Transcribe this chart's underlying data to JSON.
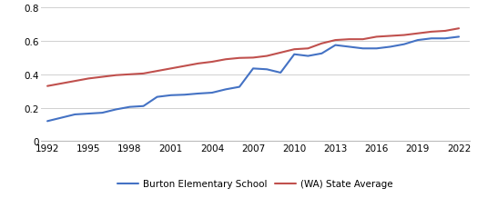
{
  "burton_years": [
    1992,
    1993,
    1994,
    1995,
    1996,
    1997,
    1998,
    1999,
    2000,
    2001,
    2002,
    2003,
    2004,
    2005,
    2006,
    2007,
    2008,
    2009,
    2010,
    2011,
    2012,
    2013,
    2014,
    2015,
    2016,
    2017,
    2018,
    2019,
    2020,
    2021,
    2022
  ],
  "burton_values": [
    0.12,
    0.14,
    0.16,
    0.165,
    0.17,
    0.19,
    0.205,
    0.21,
    0.265,
    0.275,
    0.278,
    0.285,
    0.29,
    0.31,
    0.325,
    0.435,
    0.43,
    0.41,
    0.52,
    0.51,
    0.525,
    0.575,
    0.565,
    0.555,
    0.555,
    0.565,
    0.58,
    0.605,
    0.615,
    0.615,
    0.625
  ],
  "state_years": [
    1992,
    1993,
    1994,
    1995,
    1996,
    1997,
    1998,
    1999,
    2000,
    2001,
    2002,
    2003,
    2004,
    2005,
    2006,
    2007,
    2008,
    2009,
    2010,
    2011,
    2012,
    2013,
    2014,
    2015,
    2016,
    2017,
    2018,
    2019,
    2020,
    2021,
    2022
  ],
  "state_values": [
    0.33,
    0.345,
    0.36,
    0.375,
    0.385,
    0.395,
    0.4,
    0.405,
    0.42,
    0.435,
    0.45,
    0.465,
    0.475,
    0.49,
    0.498,
    0.5,
    0.51,
    0.53,
    0.55,
    0.555,
    0.585,
    0.605,
    0.61,
    0.61,
    0.625,
    0.63,
    0.635,
    0.645,
    0.655,
    0.66,
    0.675
  ],
  "burton_color": "#4472C4",
  "state_color": "#C0504D",
  "burton_label": "Burton Elementary School",
  "state_label": "(WA) State Average",
  "ylim": [
    0,
    0.8
  ],
  "yticks": [
    0,
    0.2,
    0.4,
    0.6,
    0.8
  ],
  "xticks": [
    1992,
    1995,
    1998,
    2001,
    2004,
    2007,
    2010,
    2013,
    2016,
    2019,
    2022
  ],
  "background_color": "#ffffff",
  "grid_color": "#d0d0d0",
  "tick_fontsize": 7.5,
  "legend_fontsize": 7.5
}
